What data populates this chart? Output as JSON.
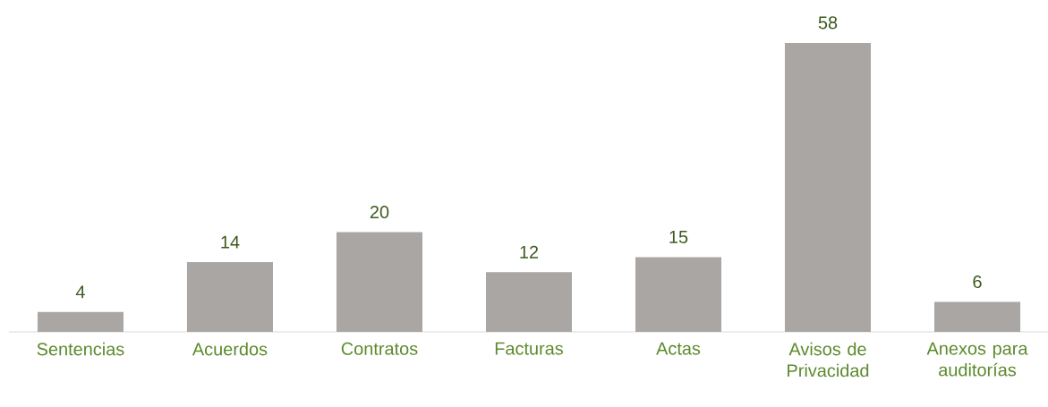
{
  "chart_data": {
    "type": "bar",
    "categories": [
      "Sentencias",
      "Acuerdos",
      "Contratos",
      "Facturas",
      "Actas",
      "Avisos de Privacidad",
      "Anexos para auditorías"
    ],
    "values": [
      4,
      14,
      20,
      12,
      15,
      58,
      6
    ],
    "color": "#aaa6a4",
    "data_labels": true
  }
}
